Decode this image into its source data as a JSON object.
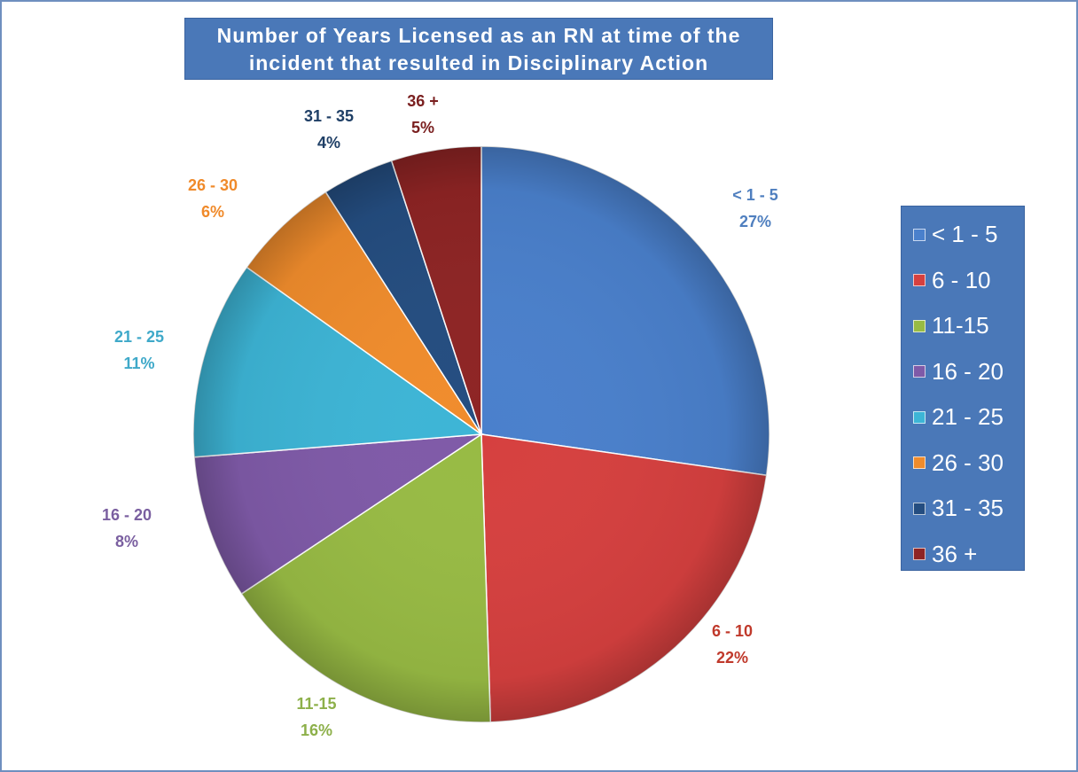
{
  "chart_data": {
    "type": "pie",
    "title": "Number of Years Licensed as an RN at time of the incident that resulted in Disciplinary Action",
    "legend_position": "right",
    "slices": [
      {
        "label": "< 1 - 5",
        "value": 27,
        "value_label": "27%",
        "color": "#4a80cc",
        "label_color": "#4f7fbf"
      },
      {
        "label": "6 - 10",
        "value": 22,
        "value_label": "22%",
        "color": "#d6403f",
        "label_color": "#c0392b"
      },
      {
        "label": "11-15",
        "value": 16,
        "value_label": "16%",
        "color": "#98bb44",
        "label_color": "#8db04a"
      },
      {
        "label": "16 - 20",
        "value": 8,
        "value_label": "8%",
        "color": "#7f5aa8",
        "label_color": "#7a5fa0"
      },
      {
        "label": "21 - 25",
        "value": 11,
        "value_label": "11%",
        "color": "#3db5d6",
        "label_color": "#3fa9c9"
      },
      {
        "label": "26 - 30",
        "value": 6,
        "value_label": "6%",
        "color": "#f08c2c",
        "label_color": "#f08a2a"
      },
      {
        "label": "31 - 35",
        "value": 4,
        "value_label": "4%",
        "color": "#244d80",
        "label_color": "#1f3f66"
      },
      {
        "label": "36 +",
        "value": 5,
        "value_label": "5%",
        "color": "#8e2424",
        "label_color": "#7a1f1f"
      }
    ]
  }
}
